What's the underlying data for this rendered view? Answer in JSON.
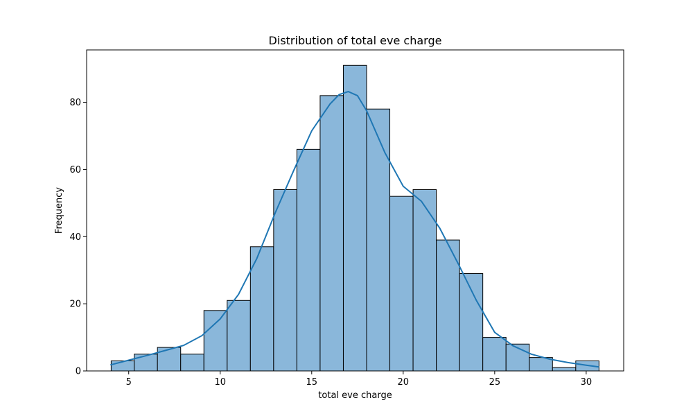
{
  "chart_data": {
    "type": "bar",
    "subtype": "histogram",
    "title": "Distribution of total eve charge",
    "xlabel": "total eve charge",
    "ylabel": "Frequency",
    "xlim": [
      2.7,
      32.05
    ],
    "ylim": [
      0,
      95.6
    ],
    "xticks": [
      5,
      10,
      15,
      20,
      25,
      30
    ],
    "yticks": [
      0,
      20,
      40,
      60,
      80
    ],
    "bins": [
      {
        "x0": 4.04,
        "x1": 5.3,
        "count": 3
      },
      {
        "x0": 5.3,
        "x1": 6.57,
        "count": 5
      },
      {
        "x0": 6.57,
        "x1": 7.84,
        "count": 7
      },
      {
        "x0": 7.84,
        "x1": 9.11,
        "count": 5
      },
      {
        "x0": 9.11,
        "x1": 10.38,
        "count": 18
      },
      {
        "x0": 10.38,
        "x1": 11.65,
        "count": 21
      },
      {
        "x0": 11.65,
        "x1": 12.92,
        "count": 37
      },
      {
        "x0": 12.92,
        "x1": 14.19,
        "count": 54
      },
      {
        "x0": 14.19,
        "x1": 15.46,
        "count": 66
      },
      {
        "x0": 15.46,
        "x1": 16.73,
        "count": 82
      },
      {
        "x0": 16.73,
        "x1": 18.0,
        "count": 91
      },
      {
        "x0": 18.0,
        "x1": 19.27,
        "count": 78
      },
      {
        "x0": 19.27,
        "x1": 20.54,
        "count": 52
      },
      {
        "x0": 20.54,
        "x1": 21.81,
        "count": 54
      },
      {
        "x0": 21.81,
        "x1": 23.08,
        "count": 39
      },
      {
        "x0": 23.08,
        "x1": 24.35,
        "count": 29
      },
      {
        "x0": 24.35,
        "x1": 25.62,
        "count": 10
      },
      {
        "x0": 25.62,
        "x1": 26.89,
        "count": 8
      },
      {
        "x0": 26.89,
        "x1": 28.16,
        "count": 4
      },
      {
        "x0": 28.16,
        "x1": 29.43,
        "count": 1
      },
      {
        "x0": 29.43,
        "x1": 30.7,
        "count": 3
      }
    ],
    "kde": {
      "x": [
        4.0,
        5.0,
        6.0,
        7.0,
        8.0,
        9.0,
        10.0,
        11.0,
        12.0,
        13.0,
        14.0,
        15.0,
        16.0,
        16.5,
        17.0,
        17.5,
        18.0,
        19.0,
        20.0,
        21.0,
        22.0,
        23.0,
        24.0,
        25.0,
        26.0,
        27.0,
        28.0,
        29.0,
        30.0,
        30.7
      ],
      "y": [
        1.8,
        3.2,
        4.6,
        6.1,
        7.6,
        10.5,
        15.5,
        22.8,
        33.5,
        47.0,
        59.5,
        71.5,
        79.5,
        82.3,
        83.2,
        82.0,
        77.5,
        65.0,
        55.0,
        50.5,
        42.5,
        32.0,
        21.0,
        11.5,
        7.5,
        5.0,
        3.5,
        2.5,
        1.7,
        1.2
      ]
    },
    "colors": {
      "bar_fill": "#8ab7da",
      "bar_edge": "#000000",
      "kde_line": "#1f77b4"
    },
    "grid": false,
    "legend": "none"
  }
}
